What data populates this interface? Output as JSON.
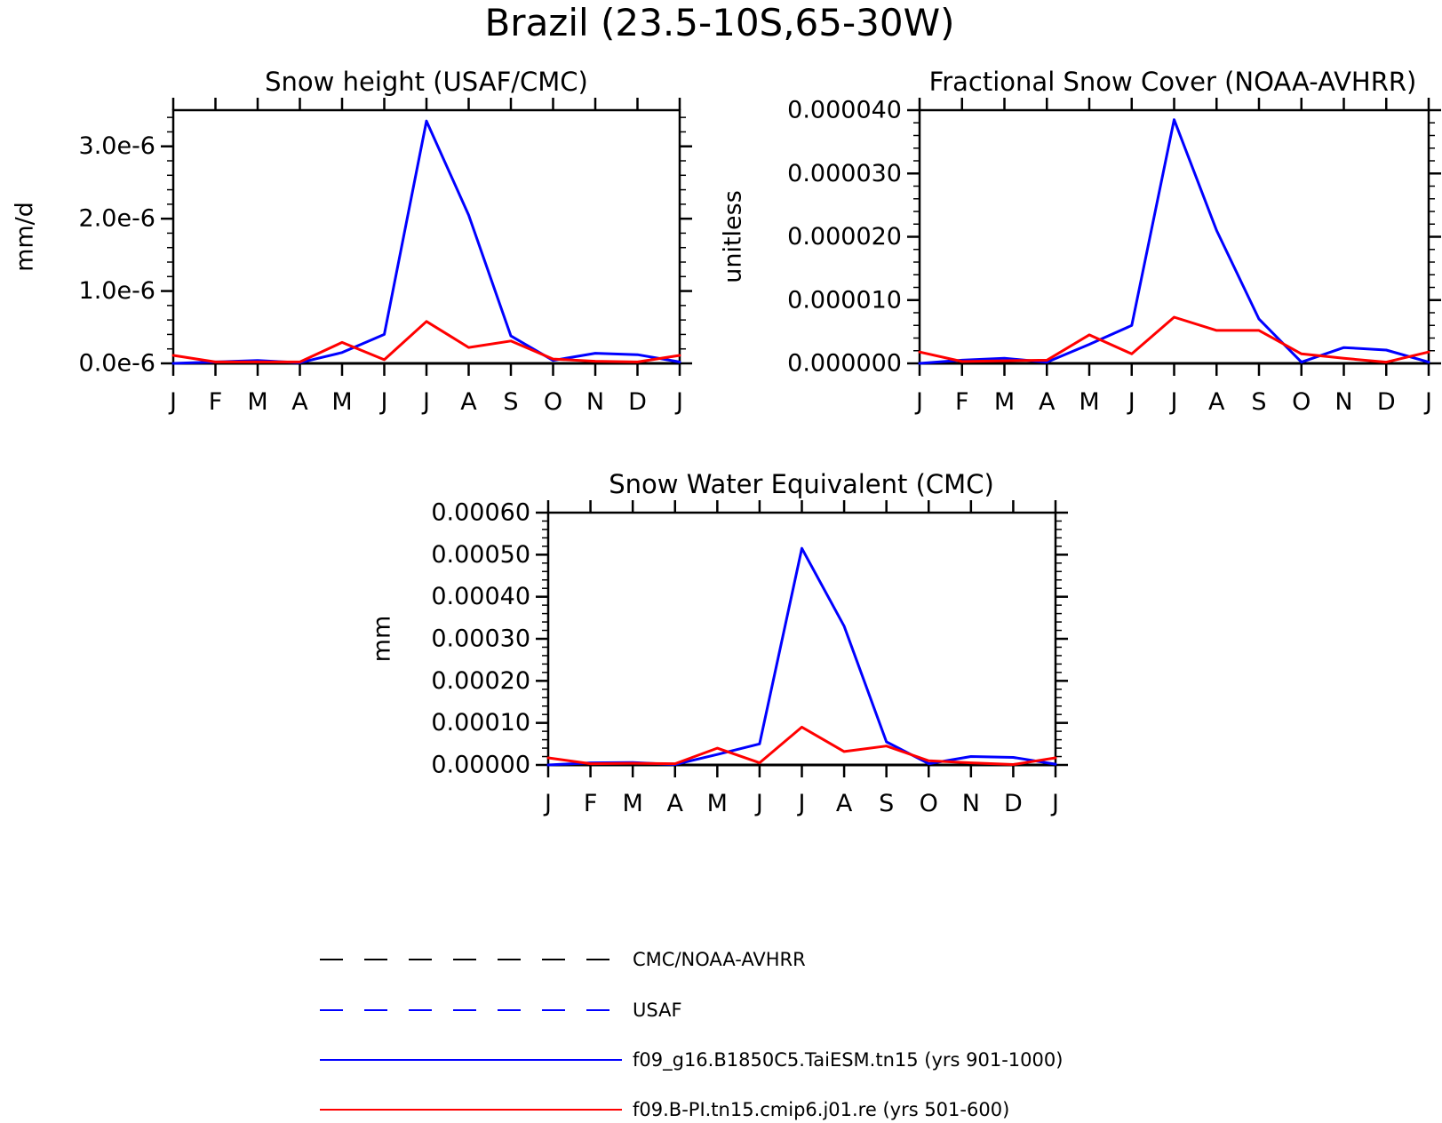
{
  "title": "Brazil (23.5-10S,65-30W)",
  "colors": {
    "obs": "#000000",
    "usaf": "#0000ff",
    "case1": "#0000ff",
    "case2": "#ff0000"
  },
  "legend": [
    {
      "label": "CMC/NOAA-AVHRR",
      "color": "#000000",
      "style": "dashed"
    },
    {
      "label": "USAF",
      "color": "#0000ff",
      "style": "dashed"
    },
    {
      "label": "f09_g16.B1850C5.TaiESM.tn15 (yrs 901-1000)",
      "color": "#0000ff",
      "style": "solid"
    },
    {
      "label": "f09.B-PI.tn15.cmip6.j01.re (yrs 501-600)",
      "color": "#ff0000",
      "style": "solid"
    }
  ],
  "chart_data": [
    {
      "type": "line",
      "title": "Snow height (USAF/CMC)",
      "ylabel": "mm/d",
      "categories": [
        "J",
        "F",
        "M",
        "A",
        "M",
        "J",
        "J",
        "A",
        "S",
        "O",
        "N",
        "D",
        "J"
      ],
      "ylim": [
        0,
        3.5e-06
      ],
      "yticks": [
        0,
        1e-06,
        2e-06,
        3e-06
      ],
      "ytick_labels": [
        "0.0e-6",
        "1.0e-6",
        "2.0e-6",
        "3.0e-6"
      ],
      "series": [
        {
          "values": [
            0,
            0,
            0,
            0,
            0,
            0,
            0,
            0,
            0,
            0,
            0,
            0,
            0
          ],
          "color": "#000000",
          "style": "solid"
        },
        {
          "values": [
            0.0,
            2e-08,
            4e-08,
            1e-08,
            1.5e-07,
            4e-07,
            3.35e-06,
            2.05e-06,
            3.8e-07,
            4e-08,
            1.4e-07,
            1.2e-07,
            2e-08
          ],
          "color": "#0000ff",
          "style": "solid"
        },
        {
          "values": [
            1.1e-07,
            2e-08,
            2e-08,
            2e-08,
            2.9e-07,
            5e-08,
            5.8e-07,
            2.2e-07,
            3.1e-07,
            6e-08,
            3e-08,
            2e-08,
            1.1e-07
          ],
          "color": "#ff0000",
          "style": "solid"
        }
      ]
    },
    {
      "type": "line",
      "title": "Fractional Snow Cover (NOAA-AVHRR)",
      "ylabel": "unitless",
      "categories": [
        "J",
        "F",
        "M",
        "A",
        "M",
        "J",
        "J",
        "A",
        "S",
        "O",
        "N",
        "D",
        "J"
      ],
      "ylim": [
        0,
        4e-05
      ],
      "yticks": [
        0,
        1e-05,
        2e-05,
        3e-05,
        4e-05
      ],
      "ytick_labels": [
        "0.000000",
        "0.000010",
        "0.000020",
        "0.000030",
        "0.000040"
      ],
      "series": [
        {
          "values": [
            0,
            0,
            0,
            0,
            0,
            0,
            0,
            0,
            0,
            0,
            0,
            0,
            0
          ],
          "color": "#000000",
          "style": "solid"
        },
        {
          "values": [
            0.0,
            5e-07,
            8e-07,
            2e-07,
            3e-06,
            6e-06,
            3.85e-05,
            2.1e-05,
            7e-06,
            2e-07,
            2.5e-06,
            2.1e-06,
            2e-07
          ],
          "color": "#0000ff",
          "style": "solid"
        },
        {
          "values": [
            1.8e-06,
            3e-07,
            4e-07,
            5e-07,
            4.5e-06,
            1.5e-06,
            7.3e-06,
            5.2e-06,
            5.2e-06,
            1.5e-06,
            8e-07,
            2e-07,
            1.8e-06
          ],
          "color": "#ff0000",
          "style": "solid"
        }
      ]
    },
    {
      "type": "line",
      "title": "Snow Water Equivalent (CMC)",
      "ylabel": "mm",
      "categories": [
        "J",
        "F",
        "M",
        "A",
        "M",
        "J",
        "J",
        "A",
        "S",
        "O",
        "N",
        "D",
        "J"
      ],
      "ylim": [
        0,
        0.0006
      ],
      "yticks": [
        0,
        0.0001,
        0.0002,
        0.0003,
        0.0004,
        0.0005,
        0.0006
      ],
      "ytick_labels": [
        "0.00000",
        "0.00010",
        "0.00020",
        "0.00030",
        "0.00040",
        "0.00050",
        "0.00060"
      ],
      "series": [
        {
          "values": [
            0,
            0,
            0,
            0,
            0,
            0,
            0,
            0,
            0,
            0,
            0,
            0,
            0
          ],
          "color": "#000000",
          "style": "solid"
        },
        {
          "values": [
            0.0,
            5e-06,
            6e-06,
            1e-06,
            2.5e-05,
            5e-05,
            0.000515,
            0.00033,
            5.5e-05,
            3e-06,
            2e-05,
            1.8e-05,
            2e-06
          ],
          "color": "#0000ff",
          "style": "solid"
        },
        {
          "values": [
            1.7e-05,
            3e-06,
            4e-06,
            3e-06,
            4e-05,
            5e-06,
            9e-05,
            3.2e-05,
            4.5e-05,
            1e-05,
            5e-06,
            1e-06,
            1.7e-05
          ],
          "color": "#ff0000",
          "style": "solid"
        }
      ]
    }
  ]
}
